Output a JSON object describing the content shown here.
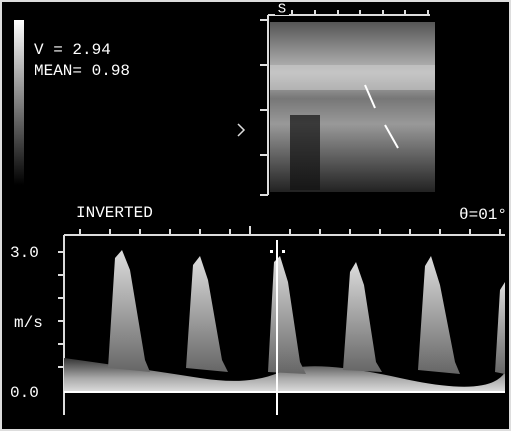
{
  "readout": {
    "velocity": "V = 2.94",
    "mean": "MEAN= 0.98"
  },
  "image": {
    "marker": "S"
  },
  "spectrum": {
    "mode": "INVERTED",
    "angle": "θ=01°",
    "scale_top": "3.0",
    "unit": "m/s",
    "scale_bottom": "0.0"
  }
}
